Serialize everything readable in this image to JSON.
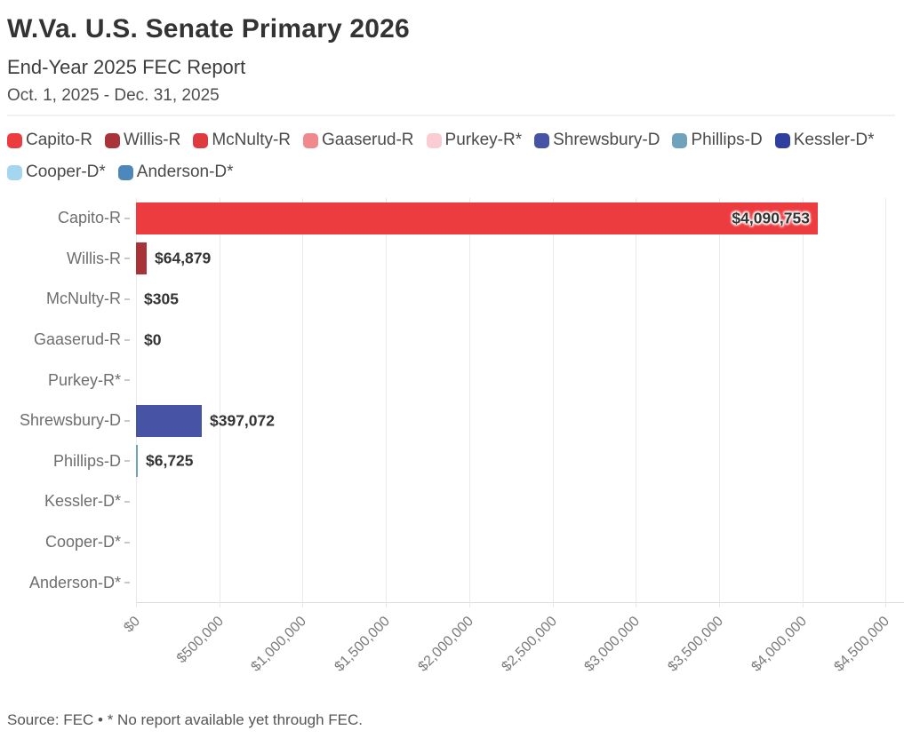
{
  "header": {
    "title": "W.Va. U.S. Senate Primary 2026",
    "subtitle": "End-Year 2025 FEC Report",
    "date_range": "Oct. 1, 2025 - Dec. 31, 2025"
  },
  "legend": {
    "items": [
      {
        "label": "Capito-R",
        "color": "#ED3C40"
      },
      {
        "label": "Willis-R",
        "color": "#A8343A"
      },
      {
        "label": "McNulty-R",
        "color": "#DF3A40"
      },
      {
        "label": "Gaaserud-R",
        "color": "#F0898D"
      },
      {
        "label": "Purkey-R*",
        "color": "#F9CDD1"
      },
      {
        "label": "Shrewsbury-D",
        "color": "#4754A5"
      },
      {
        "label": "Phillips-D",
        "color": "#6FA2BC"
      },
      {
        "label": "Kessler-D*",
        "color": "#2E3F9E"
      },
      {
        "label": "Cooper-D*",
        "color": "#A5D5EF"
      },
      {
        "label": "Anderson-D*",
        "color": "#4C88B9"
      }
    ]
  },
  "chart_data": {
    "type": "bar",
    "orientation": "horizontal",
    "title": "W.Va. U.S. Senate Primary 2026",
    "subtitle": "End-Year 2025 FEC Report",
    "period": "Oct. 1, 2025 - Dec. 31, 2025",
    "categories": [
      "Capito-R",
      "Willis-R",
      "McNulty-R",
      "Gaaserud-R",
      "Purkey-R*",
      "Shrewsbury-D",
      "Phillips-D",
      "Kessler-D*",
      "Cooper-D*",
      "Anderson-D*"
    ],
    "values": [
      4090753,
      64879,
      305,
      0,
      null,
      397072,
      6725,
      null,
      null,
      null
    ],
    "value_labels": [
      "$4,090,753",
      "$64,879",
      "$305",
      "$0",
      "",
      "$397,072",
      "$6,725",
      "",
      "",
      ""
    ],
    "bar_colors": [
      "#ED3C40",
      "#A8343A",
      "#DF3A40",
      "#F0898D",
      "#F9CDD1",
      "#4754A5",
      "#6FA2BC",
      "#2E3F9E",
      "#A5D5EF",
      "#4C88B9"
    ],
    "x_ticks": [
      {
        "value": 0,
        "label": "$0"
      },
      {
        "value": 500000,
        "label": "$500,000"
      },
      {
        "value": 1000000,
        "label": "$1,000,000"
      },
      {
        "value": 1500000,
        "label": "$1,500,000"
      },
      {
        "value": 2000000,
        "label": "$2,000,000"
      },
      {
        "value": 2500000,
        "label": "$2,500,000"
      },
      {
        "value": 3000000,
        "label": "$3,000,000"
      },
      {
        "value": 3500000,
        "label": "$3,500,000"
      },
      {
        "value": 4000000,
        "label": "$4,000,000"
      },
      {
        "value": 4500000,
        "label": "$4,500,000"
      }
    ],
    "xlim": [
      0,
      4610000
    ],
    "grid": true,
    "legend_position": "top"
  },
  "footer": {
    "source": "Source: FEC • * No report available yet through FEC."
  }
}
